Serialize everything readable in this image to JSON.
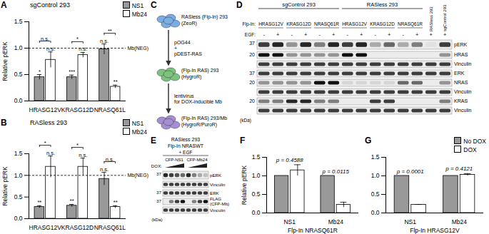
{
  "chart_data": [
    {
      "panel": "A",
      "type": "bar",
      "title": "sgControl 293",
      "y_label": "Relative pERK",
      "categories": [
        "HRASG12V",
        "KRASG12D",
        "NRASQ61L"
      ],
      "series": [
        {
          "name": "NS1",
          "color": "#999999",
          "values": [
            0.45,
            0.45,
            0.98
          ],
          "errors": [
            0.05,
            0.04,
            0.1
          ]
        },
        {
          "name": "Mb24",
          "color": "#ffffff",
          "values": [
            0.78,
            0.87,
            0.27
          ],
          "errors": [
            0.15,
            0.05,
            0.03
          ]
        }
      ],
      "ylim": [
        0,
        1.5
      ],
      "yticks": [
        {
          "value": 0,
          "label": "0.0"
        },
        {
          "value": 0.5,
          "label": "0.5"
        },
        {
          "value": 1,
          "label": "1.0"
        },
        {
          "value": 1.5,
          "label": "1.5"
        }
      ],
      "legend": "top-right",
      "reference": {
        "value": 1,
        "label": "Mb(NEG)"
      },
      "significance": [
        {
          "category": "HRASG12V",
          "series": "NS1",
          "text": "*"
        },
        {
          "category": "HRASG12V",
          "series": "Mb24",
          "text": "n.s."
        },
        {
          "category": "KRASG12D",
          "series": "NS1",
          "text": "***"
        },
        {
          "category": "KRASG12D",
          "series": "Mb24",
          "text": "n.s."
        },
        {
          "category": "NRASQ61L",
          "series": "NS1",
          "text": "n.s."
        },
        {
          "category": "NRASQ61L",
          "series": "Mb24",
          "text": "**"
        }
      ],
      "comparisons": [
        {
          "category": "HRASG12V",
          "text": "n.s."
        },
        {
          "category": "KRASG12D",
          "text": "*"
        },
        {
          "category": "NRASQ61L",
          "text": "**"
        }
      ]
    },
    {
      "panel": "B",
      "type": "bar",
      "title": "RASless 293",
      "y_label": "Relative pERK",
      "categories": [
        "HRASG12V",
        "KRASG12D",
        "NRASQ61L"
      ],
      "series": [
        {
          "name": "NS1",
          "color": "#999999",
          "values": [
            0.27,
            0.3,
            0.92
          ],
          "errors": [
            0.03,
            0.03,
            0.15
          ]
        },
        {
          "name": "Mb24",
          "color": "#ffffff",
          "values": [
            1.2,
            1.2,
            0.27
          ],
          "errors": [
            0.25,
            0.2,
            0.03
          ]
        }
      ],
      "ylim": [
        0,
        1.5
      ],
      "yticks": [
        {
          "value": 0,
          "label": "0.0"
        },
        {
          "value": 0.5,
          "label": "0.5"
        },
        {
          "value": 1,
          "label": "1.0"
        },
        {
          "value": 1.5,
          "label": "1.5"
        }
      ],
      "legend": "top-right",
      "reference": {
        "value": 1,
        "label": "Mb(NEG)"
      },
      "significance": [
        {
          "category": "HRASG12V",
          "series": "NS1",
          "text": "**"
        },
        {
          "category": "HRASG12V",
          "series": "Mb24",
          "text": "n.s."
        },
        {
          "category": "KRASG12D",
          "series": "NS1",
          "text": "**"
        },
        {
          "category": "KRASG12D",
          "series": "Mb24",
          "text": "n.s."
        },
        {
          "category": "NRASQ61L",
          "series": "NS1",
          "text": "n.s."
        },
        {
          "category": "NRASQ61L",
          "series": "Mb24",
          "text": "**"
        }
      ],
      "comparisons": [
        {
          "category": "HRASG12V",
          "text": "*"
        },
        {
          "category": "KRASG12D",
          "text": "*"
        },
        {
          "category": "NRASQ61L",
          "text": "n.s."
        }
      ]
    },
    {
      "panel": "F",
      "type": "bar",
      "y_label": "Relative pERK",
      "x_label": "Flp-In NRASQ61R",
      "categories": [
        "NS1",
        "Mb24"
      ],
      "series": [
        {
          "name": "No DOX",
          "color": "#999999",
          "values": [
            1,
            1
          ],
          "errors": [
            0,
            0
          ]
        },
        {
          "name": "DOX",
          "color": "#ffffff",
          "values": [
            1.15,
            0.22
          ],
          "errors": [
            0.15,
            0.07
          ]
        }
      ],
      "ylim": [
        0,
        1.5
      ],
      "yticks": [
        {
          "value": 0,
          "label": "0.0"
        },
        {
          "value": 0.5,
          "label": "0.5"
        },
        {
          "value": 1,
          "label": "1.0"
        },
        {
          "value": 1.5,
          "label": "1.5"
        }
      ],
      "p_values": [
        {
          "category": "NS1",
          "text": "p = 0.4588"
        },
        {
          "category": "Mb24",
          "text": "p = 0.0115"
        }
      ]
    },
    {
      "panel": "G",
      "type": "bar",
      "x_label": "Flp-In HRASG12V",
      "categories": [
        "NS1",
        "Mb24"
      ],
      "series": [
        {
          "name": "No DOX",
          "color": "#999999",
          "values": [
            1,
            1
          ],
          "errors": [
            0,
            0
          ]
        },
        {
          "name": "DOX",
          "color": "#ffffff",
          "values": [
            0.22,
            1.03
          ],
          "errors": [
            0.01,
            0.03
          ]
        }
      ],
      "ylim": [
        0,
        1.5
      ],
      "yticks": [
        {
          "value": 0,
          "label": "0.0"
        },
        {
          "value": 0.5,
          "label": "0.5"
        },
        {
          "value": 1,
          "label": "1.0"
        },
        {
          "value": 1.5,
          "label": "1.5"
        }
      ],
      "legend": "top-right",
      "p_values": [
        {
          "category": "NS1",
          "text": "p = 0.0001"
        },
        {
          "category": "Mb24",
          "text": "p = 0.4121"
        }
      ]
    }
  ],
  "diagram": {
    "panel": "C",
    "nodes": [
      {
        "label": [
          "RASless (Flp-In) 293",
          "(ZeoR)"
        ]
      },
      {
        "label": [
          "(Flp-In RAS) 293",
          "(HygroR)"
        ]
      },
      {
        "label": [
          "(Flp-In RAS) 293/Mb",
          "(HygroR/PuroR)"
        ]
      }
    ],
    "edges": [
      {
        "label": [
          "pOG44",
          "+",
          "pDEST-RAS"
        ]
      },
      {
        "label": [
          "lentivirus",
          "for DOX-inducible Mb"
        ]
      }
    ]
  },
  "blots": [
    {
      "panel": "D",
      "groups": [
        {
          "label": "sgControl 293",
          "lanes": 6
        },
        {
          "label": "RASless 293",
          "lanes": 6
        }
      ],
      "extra_lanes": [
        "RASless 293",
        "sgControl 293"
      ],
      "flp_in_label": "Flp-In:",
      "flp_in": [
        "HRASG12V",
        "KRASG12D",
        "NRASQ61R",
        "HRASG12V",
        "KRASG12D",
        "NRASQ61R"
      ],
      "egf_label": "EGF:",
      "egf": [
        "-",
        "+",
        "-",
        "+",
        "-",
        "+",
        "-",
        "+",
        "-",
        "+",
        "-",
        "+",
        "+",
        "+"
      ],
      "rows": [
        {
          "label": "pERK",
          "kda": 37,
          "bands": [
            0.8,
            0.9,
            0.4,
            0.9,
            0.5,
            0.9,
            0.8,
            0.9,
            0.3,
            0.6,
            0.3,
            0.5,
            0.05,
            0.8
          ]
        },
        {
          "label": "HRAS",
          "kda": 20,
          "bands": [
            1,
            1,
            0.4,
            0.4,
            0.4,
            0.4,
            1,
            1,
            0,
            0,
            0,
            0,
            0,
            0.4
          ]
        },
        {
          "label": "Vinculin",
          "bands": [
            0.8,
            0.8,
            0.8,
            0.8,
            0.8,
            0.8,
            0.8,
            0.8,
            0.8,
            0.8,
            0.8,
            0.8,
            0.8,
            0.8
          ]
        },
        {
          "label": "ERK",
          "kda": 37,
          "bands": [
            0.8,
            0.8,
            0.8,
            0.8,
            0.8,
            0.8,
            0.8,
            0.8,
            0.8,
            0.8,
            0.8,
            0.8,
            0.8,
            0.8
          ]
        },
        {
          "label": "NRAS",
          "kda": 20,
          "bands": [
            0.4,
            0.4,
            0.4,
            0.4,
            1,
            1,
            0.1,
            0.1,
            0.1,
            0.1,
            0.6,
            0.6,
            0,
            0.4
          ]
        },
        {
          "label": "Vinculin",
          "bands": [
            0.8,
            0.8,
            0.8,
            0.8,
            0.8,
            0.8,
            0.8,
            0.8,
            0.8,
            0.8,
            0.8,
            0.8,
            0.8,
            0.8
          ]
        },
        {
          "label": "KRAS",
          "kda": 20,
          "bands": [
            0.5,
            0.5,
            0.9,
            0.9,
            0.5,
            0.5,
            0,
            0,
            0.8,
            0.8,
            0,
            0,
            0,
            0.5
          ]
        },
        {
          "label": "Vinculin",
          "bands": [
            0.8,
            0.8,
            0.8,
            0.8,
            0.8,
            0.8,
            0.8,
            0.8,
            0.8,
            0.8,
            0.8,
            0.8,
            0.8,
            0.8
          ]
        }
      ],
      "kda_unit": "(kDa)"
    },
    {
      "panel": "E",
      "title": [
        "RASless 293",
        "Flp-In NRASWT"
      ],
      "treatment": "+ EGF",
      "groups": [
        {
          "label": "CFP-NS1",
          "lanes": 4
        },
        {
          "label": "CFP-Mb24",
          "lanes": 4
        }
      ],
      "dox_label": "DOX:",
      "rows": [
        {
          "label": "pERK",
          "kda": 37,
          "bands": [
            0.9,
            0.8,
            0.7,
            0.6,
            0.9,
            0.5,
            0.3,
            0.2
          ]
        },
        {
          "label": "Vinculin",
          "bands": [
            0.8,
            0.8,
            0.8,
            0.8,
            0.8,
            0.8,
            0.8,
            0.8
          ]
        },
        {
          "label": "ERK",
          "kda": 37,
          "bands": [
            0.8,
            0.8,
            0.8,
            0.8,
            0.8,
            0.8,
            0.8,
            0.8
          ]
        },
        {
          "label": "FLAG (CFP-Mb)",
          "kda": 37,
          "bands": [
            0,
            0.5,
            0.8,
            1,
            0,
            0.5,
            0.8,
            1
          ]
        },
        {
          "label": "Vinculin",
          "bands": [
            0.8,
            0.8,
            0.8,
            0.8,
            0.8,
            0.8,
            0.8,
            0.8
          ]
        }
      ],
      "kda_unit": "(kDa)"
    }
  ]
}
